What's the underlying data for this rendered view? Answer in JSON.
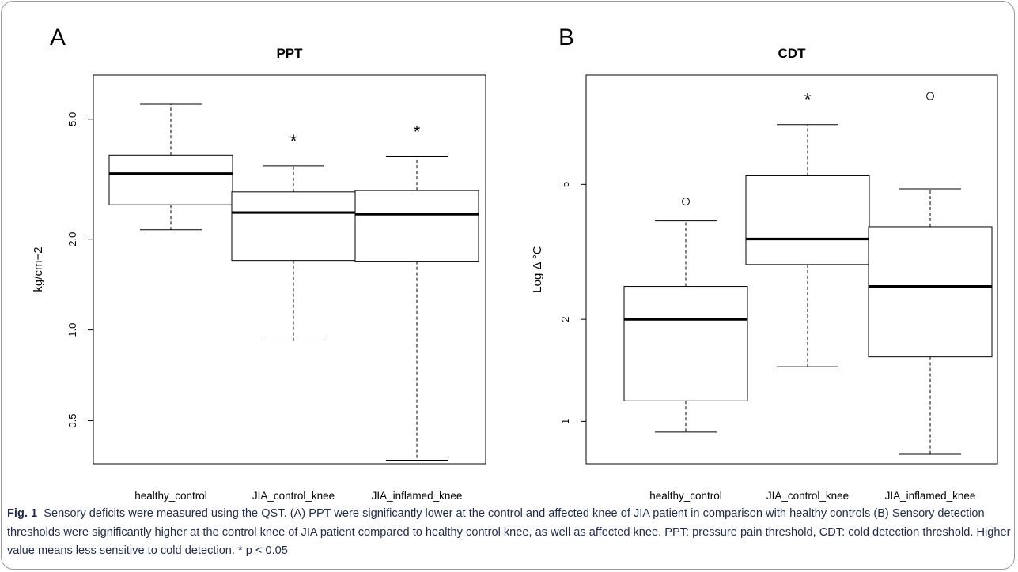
{
  "figure": {
    "caption": {
      "label": "Fig. 1",
      "text": "Sensory deficits were measured using the QST. (A) PPT were significantly lower at the control and affected knee of JIA patient in comparison with healthy controls (B) Sensory detection thresholds were significantly higher at the control knee of JIA patient compared to healthy control knee, as well as affected knee. PPT: pressure pain threshold, CDT: cold detection threshold. Higher value means less sensitive to cold detection. * p < 0.05"
    }
  },
  "chart_data": [
    {
      "type": "box",
      "panel": "A",
      "title": "PPT",
      "ylabel": "kg/cm−2",
      "xlabel": "",
      "scale": "log",
      "ylim": [
        0.36,
        7.0
      ],
      "yticks": [
        0.5,
        1.0,
        2.0,
        5.0
      ],
      "ytick_labels": [
        "0.5",
        "1.0",
        "2.0",
        "5.0"
      ],
      "categories": [
        "healthy_control",
        "JIA_control_knee",
        "JIA_inflamed_knee"
      ],
      "boxes": [
        {
          "min": 2.15,
          "q1": 2.6,
          "median": 3.3,
          "q3": 3.8,
          "max": 5.6,
          "outliers": [],
          "significant": false
        },
        {
          "min": 0.92,
          "q1": 1.7,
          "median": 2.45,
          "q3": 2.87,
          "max": 3.5,
          "outliers": [],
          "significant": true
        },
        {
          "min": 0.37,
          "q1": 1.69,
          "median": 2.42,
          "q3": 2.9,
          "max": 3.75,
          "outliers": [],
          "significant": true
        }
      ],
      "annotation": "*"
    },
    {
      "type": "box",
      "panel": "B",
      "title": "CDT",
      "ylabel": "Log Δ °C",
      "xlabel": "",
      "scale": "log",
      "ylim": [
        0.75,
        10.5
      ],
      "yticks": [
        1,
        2,
        5
      ],
      "ytick_labels": [
        "1",
        "2",
        "5"
      ],
      "categories": [
        "healthy_control",
        "JIA_control_knee",
        "JIA_inflamed_knee"
      ],
      "boxes": [
        {
          "min": 0.93,
          "q1": 1.15,
          "median": 2.0,
          "q3": 2.5,
          "max": 3.9,
          "outliers": [
            4.45
          ],
          "significant": false
        },
        {
          "min": 1.45,
          "q1": 2.9,
          "median": 3.45,
          "q3": 5.3,
          "max": 7.5,
          "outliers": [],
          "significant": true
        },
        {
          "min": 0.8,
          "q1": 1.55,
          "median": 2.5,
          "q3": 3.75,
          "max": 4.85,
          "outliers": [
            9.1
          ],
          "significant": false
        }
      ],
      "annotation": "*"
    }
  ]
}
